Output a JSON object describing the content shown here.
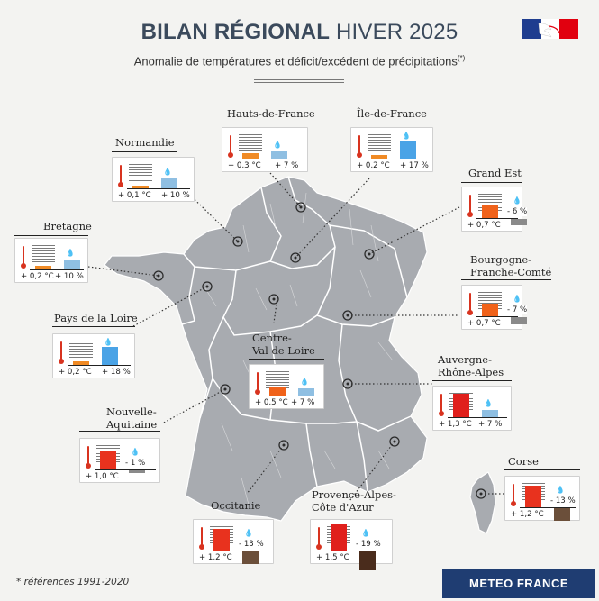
{
  "header": {
    "title_bold": "BILAN RÉGIONAL",
    "title_light": " HIVER 2025",
    "subtitle": "Anomalie de températures et déficit/excédent de précipitations",
    "subtitle_mark": "(*)"
  },
  "footer": {
    "footnote": "* références 1991-2020",
    "brand": "METEO FRANCE"
  },
  "colors": {
    "temp_light": "#f08a24",
    "temp_mid": "#f0621a",
    "temp_strong": "#e8321e",
    "temp_very_strong": "#e0201c",
    "precip_excess": "#4aa3e6",
    "precip_excess_light": "#8fbfe2",
    "precip_deficit_light": "#8a8a8a",
    "precip_deficit": "#6b4f3a",
    "precip_deficit_strong": "#4a2c1c",
    "map_fill": "#a8abb0",
    "background": "#f3f3f1",
    "brand_bg": "#1f3d72"
  },
  "regions": [
    {
      "name": "Hauts-de-France",
      "temp_anomaly": "+ 0,3 °C",
      "precip": "+ 7 %",
      "temp_value": 0.3,
      "precip_value": 7
    },
    {
      "name": "Île-de-France",
      "temp_anomaly": "+ 0,2 °C",
      "precip": "+ 17 %",
      "temp_value": 0.2,
      "precip_value": 17
    },
    {
      "name": "Normandie",
      "temp_anomaly": "+ 0,1 °C",
      "precip": "+ 10 %",
      "temp_value": 0.1,
      "precip_value": 10
    },
    {
      "name": "Grand Est",
      "temp_anomaly": "+ 0,7 °C",
      "precip": "- 6 %",
      "temp_value": 0.7,
      "precip_value": -6
    },
    {
      "name": "Bretagne",
      "temp_anomaly": "+ 0,2 °C",
      "precip": "+ 10 %",
      "temp_value": 0.2,
      "precip_value": 10
    },
    {
      "name": "Bourgogne-Franche-Comté",
      "name_line1": "Bourgogne-",
      "name_line2": "Franche-Comté",
      "temp_anomaly": "+ 0,7 °C",
      "precip": "- 7 %",
      "temp_value": 0.7,
      "precip_value": -7
    },
    {
      "name": "Pays de la Loire",
      "temp_anomaly": "+ 0,2 °C",
      "precip": "+ 18 %",
      "temp_value": 0.2,
      "precip_value": 18
    },
    {
      "name": "Centre-Val de Loire",
      "name_line1": "Centre-",
      "name_line2": "Val de Loire",
      "temp_anomaly": "+ 0,5 °C",
      "precip": "+ 7 %",
      "temp_value": 0.5,
      "precip_value": 7
    },
    {
      "name": "Auvergne-Rhône-Alpes",
      "name_line1": "Auvergne-",
      "name_line2": "Rhône-Alpes",
      "temp_anomaly": "+ 1,3 °C",
      "precip": "+ 7 %",
      "temp_value": 1.3,
      "precip_value": 7
    },
    {
      "name": "Nouvelle-Aquitaine",
      "name_line1": "Nouvelle-",
      "name_line2": "Aquitaine",
      "temp_anomaly": "+ 1,0 °C",
      "precip": "- 1 %",
      "temp_value": 1.0,
      "precip_value": -1
    },
    {
      "name": "Corse",
      "temp_anomaly": "+ 1,2 °C",
      "precip": "- 13 %",
      "temp_value": 1.2,
      "precip_value": -13
    },
    {
      "name": "Occitanie",
      "temp_anomaly": "+ 1,2 °C",
      "precip": "- 13 %",
      "temp_value": 1.2,
      "precip_value": -13
    },
    {
      "name": "Provence-Alpes-Côte d'Azur",
      "name_line1": "Provence-Alpes-",
      "name_line2": "Côte d'Azur",
      "temp_anomaly": "+ 1,5 °C",
      "precip": "- 19 %",
      "temp_value": 1.5,
      "precip_value": -19
    }
  ]
}
